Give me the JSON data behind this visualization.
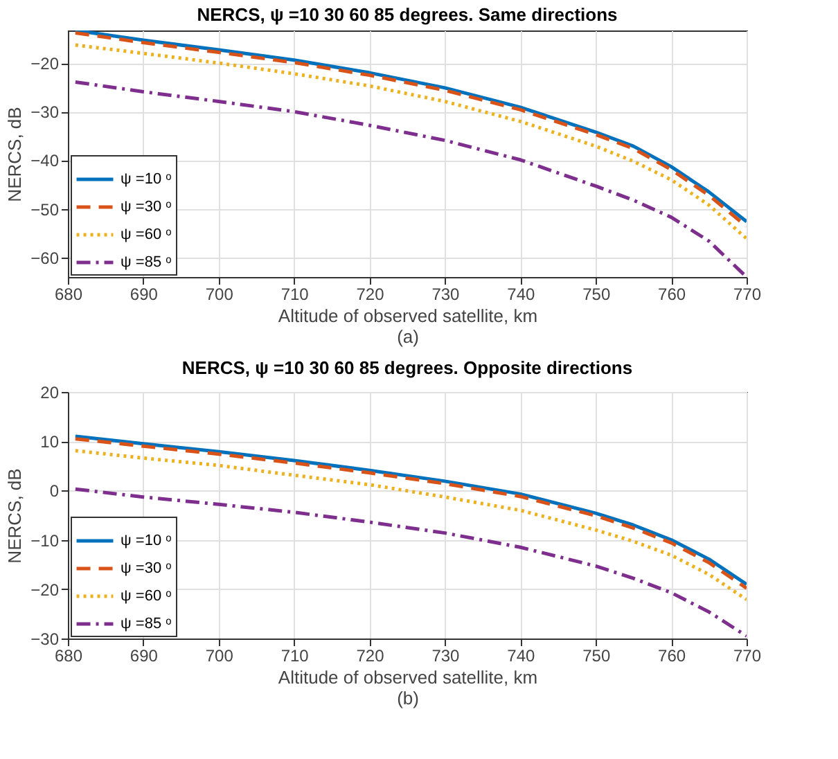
{
  "chart_data": [
    {
      "type": "line",
      "title": "NERCS,  ψ =10  30  60  85 degrees. Same directions",
      "xlabel": "Altitude of observed satellite, km",
      "ylabel": "NERCS, dB",
      "annotations": [
        "(a)"
      ],
      "x": [
        681,
        690,
        700,
        710,
        720,
        730,
        740,
        750,
        755,
        760,
        765,
        770
      ],
      "xlim": [
        680,
        770
      ],
      "xticks": [
        680,
        690,
        700,
        710,
        720,
        730,
        740,
        750,
        760,
        770
      ],
      "ylim": [
        -64,
        -13.3
      ],
      "yticks": [
        -60,
        -50,
        -40,
        -30,
        -20
      ],
      "grid": true,
      "legend": "bottom left",
      "series": [
        {
          "name": "ψ =10 ᵒ",
          "color": "#0072bd",
          "line_style": "solid",
          "values": [
            -13.3,
            -15.3,
            -17.3,
            -19.4,
            -22.0,
            -25.1,
            -29.1,
            -34.2,
            -37.1,
            -41.3,
            -46.5,
            -52.6
          ]
        },
        {
          "name": "ψ =30 ᵒ",
          "color": "#d95319",
          "line_style": "dashed",
          "values": [
            -13.8,
            -15.8,
            -17.8,
            -19.9,
            -22.5,
            -25.6,
            -29.6,
            -34.7,
            -37.6,
            -41.9,
            -47.2,
            -53.6
          ]
        },
        {
          "name": "ψ =60 ᵒ",
          "color": "#edb120",
          "line_style": "dotted",
          "values": [
            -16.3,
            -18.0,
            -20.0,
            -22.2,
            -24.7,
            -27.9,
            -32.0,
            -37.1,
            -40.2,
            -44.0,
            -49.2,
            -56.1
          ]
        },
        {
          "name": "ψ =85 ᵒ",
          "color": "#7e2f8e",
          "line_style": "dashdot",
          "values": [
            -23.9,
            -25.9,
            -27.9,
            -30.0,
            -32.8,
            -35.9,
            -39.9,
            -45.3,
            -48.2,
            -51.7,
            -56.6,
            -64.0
          ]
        }
      ]
    },
    {
      "type": "line",
      "title": "NERCS,  ψ =10  30  60  85 degrees. Opposite directions",
      "xlabel": "Altitude of observed satellite, km",
      "ylabel": "NERCS, dB",
      "annotations": [
        "(b)"
      ],
      "x": [
        681,
        690,
        700,
        710,
        720,
        730,
        740,
        750,
        755,
        760,
        765,
        770
      ],
      "xlim": [
        680,
        770
      ],
      "xticks": [
        680,
        690,
        700,
        710,
        720,
        730,
        740,
        750,
        760,
        770
      ],
      "ylim": [
        -30,
        20
      ],
      "yticks": [
        -30,
        -20,
        -10,
        0,
        10,
        20
      ],
      "grid": true,
      "legend": "bottom left",
      "series": [
        {
          "name": "ψ =10 ᵒ",
          "color": "#0072bd",
          "line_style": "solid",
          "values": [
            11.0,
            9.5,
            7.9,
            6.1,
            4.1,
            1.9,
            -0.7,
            -4.6,
            -7.0,
            -10.0,
            -13.9,
            -19.0
          ]
        },
        {
          "name": "ψ =30 ᵒ",
          "color": "#d95319",
          "line_style": "dashed",
          "values": [
            10.5,
            9.0,
            7.4,
            5.6,
            3.6,
            1.4,
            -1.2,
            -5.1,
            -7.6,
            -10.6,
            -14.6,
            -19.8
          ]
        },
        {
          "name": "ψ =60 ᵒ",
          "color": "#edb120",
          "line_style": "dotted",
          "values": [
            8.1,
            6.6,
            5.1,
            3.1,
            1.2,
            -1.3,
            -4.0,
            -8.0,
            -10.3,
            -13.1,
            -17.0,
            -22.1
          ]
        },
        {
          "name": "ψ =85 ᵒ",
          "color": "#7e2f8e",
          "line_style": "dashdot",
          "values": [
            0.3,
            -1.3,
            -2.8,
            -4.4,
            -6.4,
            -8.6,
            -11.5,
            -15.3,
            -17.8,
            -20.7,
            -24.6,
            -29.5
          ]
        }
      ]
    }
  ]
}
